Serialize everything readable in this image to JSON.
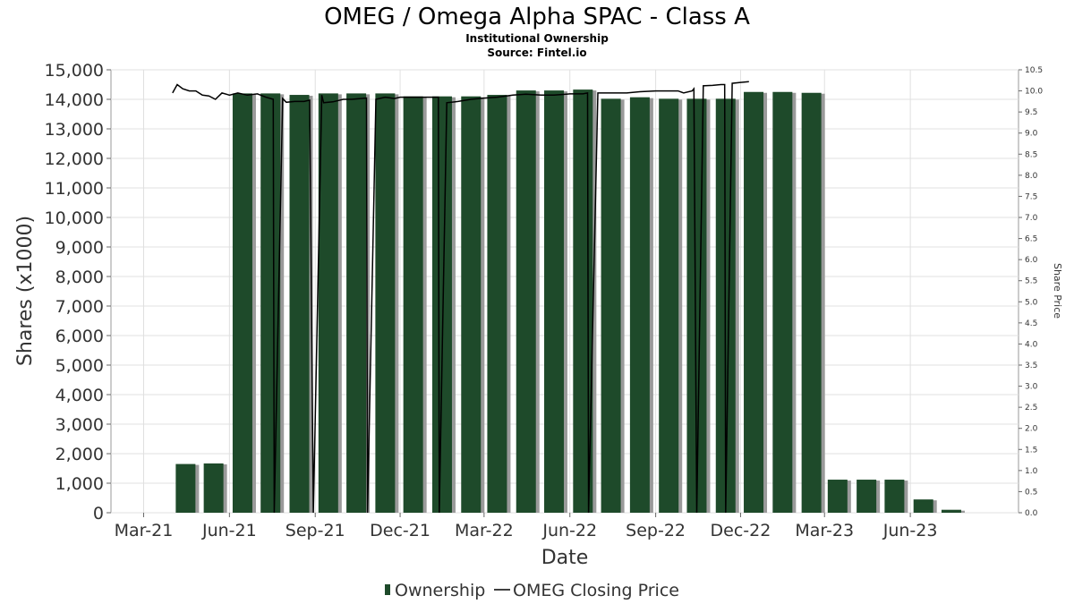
{
  "chart_data": {
    "type": "bar",
    "title": "OMEG / Omega Alpha SPAC - Class A",
    "subtitle_1": "Institutional Ownership",
    "subtitle_2": "Source: Fintel.io",
    "xlabel": "Date",
    "ylabel": "Shares (x1000)",
    "y2label": "Share Price",
    "xlim": [
      "2021-01-25",
      "2023-09-25"
    ],
    "ylim": [
      0,
      15000
    ],
    "y2lim": [
      0,
      10.5
    ],
    "x_ticks": [
      {
        "date": "2021-03-01",
        "label": "Mar-21"
      },
      {
        "date": "2021-06-01",
        "label": "Jun-21"
      },
      {
        "date": "2021-09-01",
        "label": "Sep-21"
      },
      {
        "date": "2021-12-01",
        "label": "Dec-21"
      },
      {
        "date": "2022-03-01",
        "label": "Mar-22"
      },
      {
        "date": "2022-06-01",
        "label": "Jun-22"
      },
      {
        "date": "2022-09-01",
        "label": "Sep-22"
      },
      {
        "date": "2022-12-01",
        "label": "Dec-22"
      },
      {
        "date": "2023-03-01",
        "label": "Mar-23"
      },
      {
        "date": "2023-06-01",
        "label": "Jun-23"
      }
    ],
    "y_ticks": [
      "0",
      "1,000",
      "2,000",
      "3,000",
      "4,000",
      "5,000",
      "6,000",
      "7,000",
      "8,000",
      "9,000",
      "10,000",
      "11,000",
      "12,000",
      "13,000",
      "14,000",
      "15,000"
    ],
    "y2_ticks": [
      "0.0",
      "0.5",
      "1.0",
      "1.5",
      "2.0",
      "2.5",
      "3.0",
      "3.5",
      "4.0",
      "4.5",
      "5.0",
      "5.5",
      "6.0",
      "6.5",
      "7.0",
      "7.5",
      "8.0",
      "8.5",
      "9.0",
      "9.5",
      "10.0",
      "10.5"
    ],
    "grid": true,
    "legend": {
      "position": "bottom"
    },
    "colors": {
      "bar": "#1e4a2a",
      "bar_shadow": "#9a9a9a",
      "line": "#000000",
      "grid": "#e0e0e0"
    },
    "series": [
      {
        "name": "Ownership",
        "type": "bar",
        "x": [
          "2021-04-15",
          "2021-05-15",
          "2021-06-15",
          "2021-07-15",
          "2021-08-15",
          "2021-09-15",
          "2021-10-15",
          "2021-11-15",
          "2021-12-15",
          "2022-01-15",
          "2022-02-15",
          "2022-03-15",
          "2022-04-15",
          "2022-05-15",
          "2022-06-15",
          "2022-07-15",
          "2022-08-15",
          "2022-09-15",
          "2022-10-15",
          "2022-11-15",
          "2022-12-15",
          "2023-01-15",
          "2023-02-15",
          "2023-03-15",
          "2023-04-15",
          "2023-05-15",
          "2023-06-15",
          "2023-07-15"
        ],
        "values": [
          1650,
          1670,
          14200,
          14200,
          14150,
          14200,
          14200,
          14200,
          14100,
          14100,
          14100,
          14150,
          14300,
          14300,
          14330,
          14020,
          14070,
          14020,
          14020,
          14020,
          14250,
          14250,
          14220,
          1120,
          1120,
          1120,
          450,
          100
        ]
      },
      {
        "name": "OMEG Closing Price",
        "type": "line",
        "x": [
          "2021-04-01",
          "2021-04-06",
          "2021-04-12",
          "2021-04-19",
          "2021-04-26",
          "2021-05-03",
          "2021-05-10",
          "2021-05-17",
          "2021-05-24",
          "2021-06-01",
          "2021-06-10",
          "2021-06-20",
          "2021-07-01",
          "2021-07-10",
          "2021-07-18",
          "2021-07-19",
          "2021-07-28",
          "2021-08-01",
          "2021-08-10",
          "2021-08-20",
          "2021-08-26",
          "2021-08-30",
          "2021-09-08",
          "2021-09-10",
          "2021-09-20",
          "2021-10-01",
          "2021-10-10",
          "2021-10-20",
          "2021-10-26",
          "2021-10-27",
          "2021-11-05",
          "2021-11-15",
          "2021-11-25",
          "2021-12-01",
          "2021-12-15",
          "2022-01-01",
          "2022-01-11",
          "2022-01-12",
          "2022-01-20",
          "2022-02-01",
          "2022-02-15",
          "2022-03-01",
          "2022-03-15",
          "2022-04-01",
          "2022-04-15",
          "2022-05-01",
          "2022-05-15",
          "2022-06-01",
          "2022-06-15",
          "2022-06-20",
          "2022-06-21",
          "2022-07-01",
          "2022-07-15",
          "2022-08-01",
          "2022-08-15",
          "2022-09-01",
          "2022-09-15",
          "2022-09-25",
          "2022-10-01",
          "2022-10-10",
          "2022-10-12",
          "2022-10-15",
          "2022-10-22",
          "2022-11-01",
          "2022-11-10",
          "2022-11-14",
          "2022-11-15",
          "2022-11-22",
          "2022-12-01",
          "2022-12-10"
        ],
        "values": [
          9.95,
          10.15,
          10.05,
          10.0,
          10.0,
          9.9,
          9.88,
          9.8,
          9.95,
          9.9,
          9.95,
          9.9,
          9.93,
          9.85,
          9.8,
          0.0,
          9.82,
          9.73,
          9.75,
          9.75,
          9.78,
          0.0,
          9.9,
          9.72,
          9.74,
          9.8,
          9.8,
          9.82,
          9.83,
          0.0,
          9.8,
          9.85,
          9.82,
          9.85,
          9.85,
          9.85,
          9.85,
          0.0,
          9.72,
          9.75,
          9.8,
          9.83,
          9.85,
          9.9,
          9.92,
          9.9,
          9.9,
          9.93,
          9.93,
          9.95,
          0.0,
          9.95,
          9.95,
          9.95,
          9.98,
          10.0,
          10.0,
          10.0,
          9.95,
          10.0,
          10.05,
          0.0,
          10.12,
          10.13,
          10.15,
          10.15,
          0.0,
          10.18,
          10.2,
          10.22
        ]
      }
    ]
  }
}
